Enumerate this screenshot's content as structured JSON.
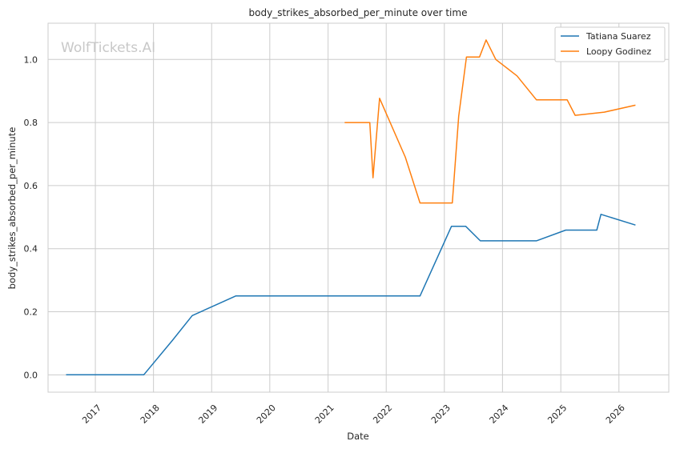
{
  "chart_data": {
    "type": "line",
    "title": "body_strikes_absorbed_per_minute over time",
    "xlabel": "Date",
    "ylabel": "body_strikes_absorbed_per_minute",
    "watermark": "WolfTickets.AI",
    "x_ticks": [
      "2017",
      "2018",
      "2019",
      "2020",
      "2021",
      "2022",
      "2023",
      "2024",
      "2025",
      "2026"
    ],
    "y_ticks": [
      "0.0",
      "0.2",
      "0.4",
      "0.6",
      "0.8",
      "1.0"
    ],
    "ylim": [
      -0.055,
      1.115
    ],
    "xlim": [
      "2016-03-10",
      "2026-11-10"
    ],
    "grid": true,
    "legend_position": "top-right",
    "series": [
      {
        "name": "Tatiana Suarez",
        "color": "#1f77b4",
        "points": [
          [
            "2016-07-01",
            0.0
          ],
          [
            "2017-11-01",
            0.0
          ],
          [
            "2018-05-01",
            0.11
          ],
          [
            "2018-09-01",
            0.188
          ],
          [
            "2019-06-01",
            0.25
          ],
          [
            "2022-08-01",
            0.25
          ],
          [
            "2023-02-15",
            0.471
          ],
          [
            "2023-05-15",
            0.471
          ],
          [
            "2023-08-15",
            0.425
          ],
          [
            "2024-08-01",
            0.425
          ],
          [
            "2025-02-01",
            0.459
          ],
          [
            "2025-08-15",
            0.459
          ],
          [
            "2025-09-10",
            0.509
          ],
          [
            "2026-04-15",
            0.475
          ]
        ]
      },
      {
        "name": "Loopy Godinez",
        "color": "#ff7f0e",
        "points": [
          [
            "2021-04-15",
            0.8
          ],
          [
            "2021-09-20",
            0.8
          ],
          [
            "2021-10-10",
            0.625
          ],
          [
            "2021-11-20",
            0.877
          ],
          [
            "2022-05-01",
            0.69
          ],
          [
            "2022-08-01",
            0.545
          ],
          [
            "2023-02-20",
            0.545
          ],
          [
            "2023-04-01",
            0.82
          ],
          [
            "2023-05-20",
            1.008
          ],
          [
            "2023-08-10",
            1.008
          ],
          [
            "2023-09-20",
            1.062
          ],
          [
            "2023-11-20",
            1.0
          ],
          [
            "2024-04-01",
            0.948
          ],
          [
            "2024-08-01",
            0.872
          ],
          [
            "2025-02-10",
            0.872
          ],
          [
            "2025-04-01",
            0.823
          ],
          [
            "2025-10-01",
            0.833
          ],
          [
            "2026-04-15",
            0.855
          ]
        ]
      }
    ]
  }
}
